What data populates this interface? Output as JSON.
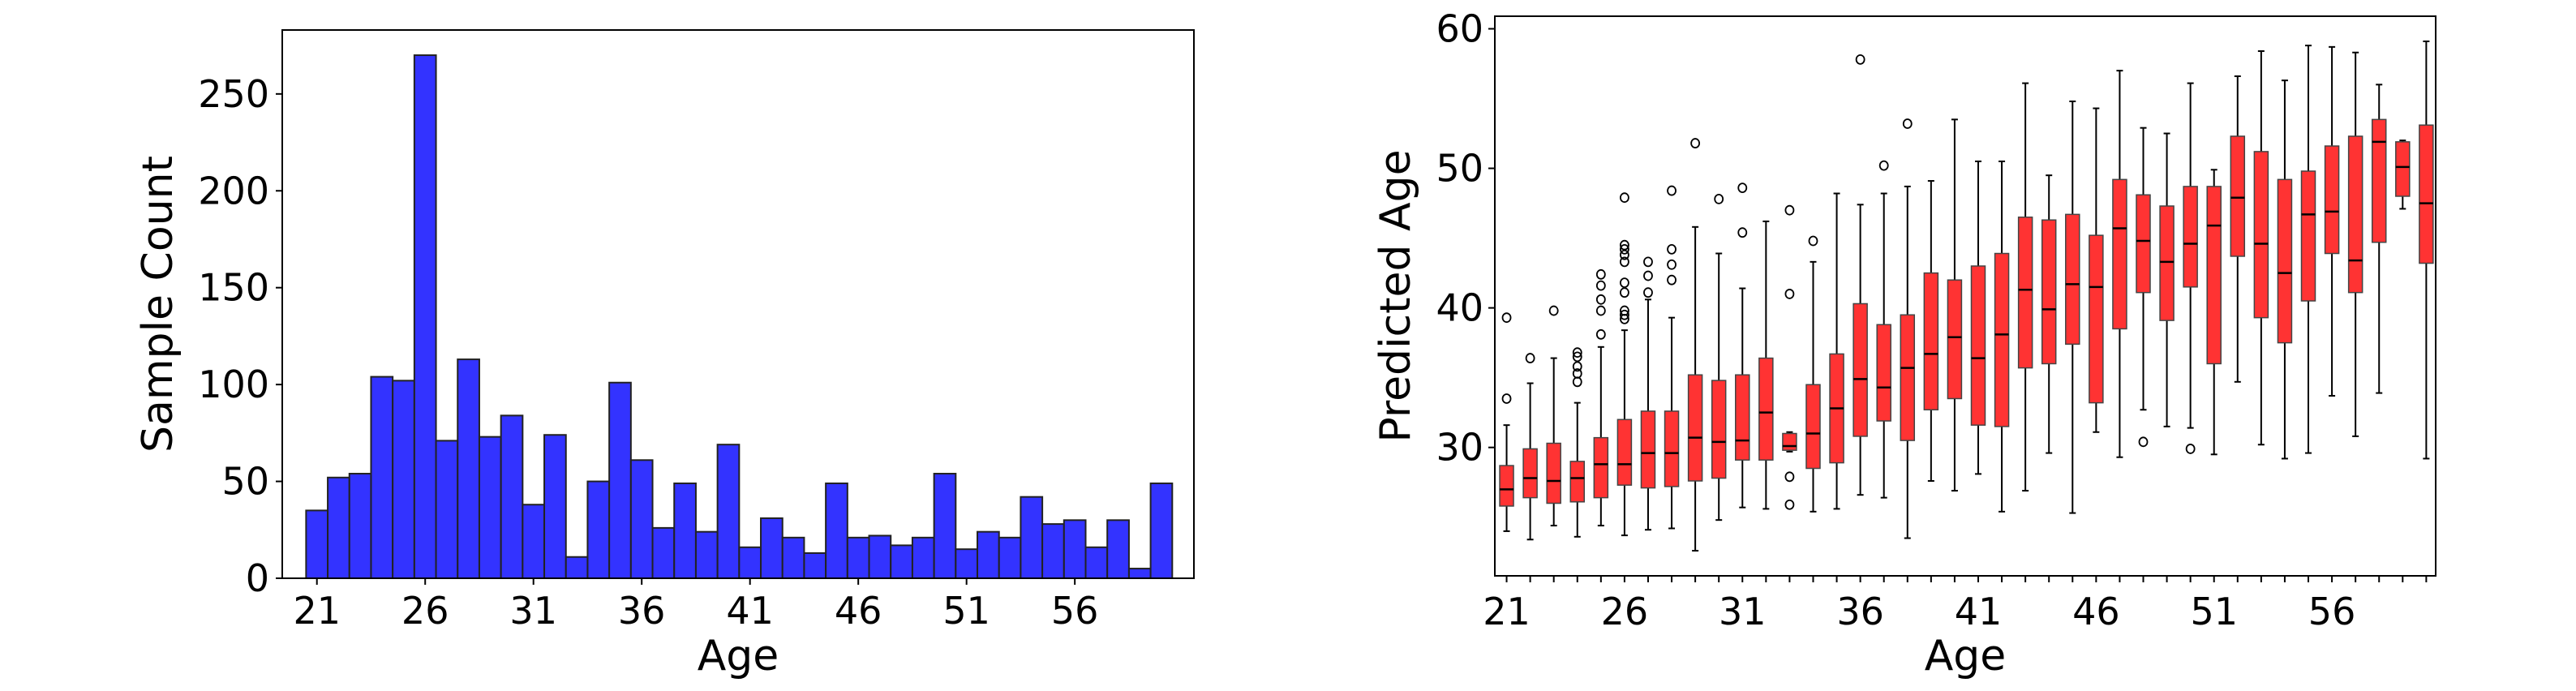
{
  "colors": {
    "hist_bar": "#3333ff",
    "box_fill": "#ff3333",
    "edge": "#000000"
  },
  "chart_data": [
    {
      "type": "bar",
      "title": "",
      "xlabel": "Age",
      "ylabel": "Sample Count",
      "x": [
        21,
        22,
        23,
        24,
        25,
        26,
        27,
        28,
        29,
        30,
        31,
        32,
        33,
        34,
        35,
        36,
        37,
        38,
        39,
        40,
        41,
        42,
        43,
        44,
        45,
        46,
        47,
        48,
        49,
        50,
        51,
        52,
        53,
        54,
        55,
        56,
        57,
        58,
        59,
        60
      ],
      "values": [
        35,
        52,
        54,
        104,
        102,
        270,
        71,
        113,
        73,
        84,
        38,
        74,
        11,
        50,
        101,
        61,
        26,
        49,
        24,
        69,
        16,
        31,
        21,
        13,
        49,
        21,
        22,
        17,
        21,
        54,
        15,
        24,
        21,
        42,
        28,
        30,
        16,
        30,
        5,
        49
      ],
      "xticks": [
        21,
        26,
        31,
        36,
        41,
        46,
        51,
        56
      ],
      "yticks": [
        0,
        50,
        100,
        150,
        200,
        250
      ],
      "xlim": [
        19.4,
        61.5
      ],
      "ylim": [
        0,
        283
      ],
      "grid": false
    },
    {
      "type": "box",
      "title": "",
      "xlabel": "Age",
      "ylabel": "Predicted Age",
      "xticks": [
        21,
        26,
        31,
        36,
        41,
        46,
        51,
        56
      ],
      "yticks": [
        30,
        40,
        50,
        60
      ],
      "xlim": [
        20.5,
        60.4
      ],
      "ylim": [
        20.8,
        60.9
      ],
      "grid": false,
      "boxes": [
        {
          "x": 21,
          "whislo": 24.0,
          "q1": 25.8,
          "med": 27.0,
          "q3": 28.7,
          "whishi": 31.6,
          "fliers": [
            33.5,
            39.3
          ]
        },
        {
          "x": 22,
          "whislo": 23.4,
          "q1": 26.4,
          "med": 27.8,
          "q3": 29.9,
          "whishi": 34.6,
          "fliers": [
            36.4
          ]
        },
        {
          "x": 23,
          "whislo": 24.4,
          "q1": 26.0,
          "med": 27.6,
          "q3": 30.3,
          "whishi": 36.4,
          "fliers": [
            39.8
          ]
        },
        {
          "x": 24,
          "whislo": 23.6,
          "q1": 26.1,
          "med": 27.8,
          "q3": 29.0,
          "whishi": 33.2,
          "fliers": [
            34.7,
            35.3,
            35.8,
            36.5,
            36.8
          ]
        },
        {
          "x": 25,
          "whislo": 24.4,
          "q1": 26.4,
          "med": 28.8,
          "q3": 30.7,
          "whishi": 37.2,
          "fliers": [
            38.1,
            39.8,
            40.6,
            41.6,
            42.4
          ]
        },
        {
          "x": 26,
          "whislo": 23.7,
          "q1": 27.3,
          "med": 28.8,
          "q3": 32.0,
          "whishi": 38.4,
          "fliers": [
            39.2,
            39.5,
            39.8,
            41.1,
            41.8,
            43.3,
            43.8,
            44.2,
            44.5,
            47.9
          ]
        },
        {
          "x": 27,
          "whislo": 24.1,
          "q1": 27.1,
          "med": 29.6,
          "q3": 32.6,
          "whishi": 40.6,
          "fliers": [
            41.1,
            42.3,
            43.3
          ]
        },
        {
          "x": 28,
          "whislo": 24.2,
          "q1": 27.2,
          "med": 29.6,
          "q3": 32.6,
          "whishi": 39.3,
          "fliers": [
            42.0,
            43.1,
            44.2,
            48.4
          ]
        },
        {
          "x": 29,
          "whislo": 22.6,
          "q1": 27.6,
          "med": 30.7,
          "q3": 35.2,
          "whishi": 45.8,
          "fliers": [
            51.8
          ]
        },
        {
          "x": 30,
          "whislo": 24.8,
          "q1": 27.8,
          "med": 30.4,
          "q3": 34.8,
          "whishi": 43.9,
          "fliers": [
            47.8
          ]
        },
        {
          "x": 31,
          "whislo": 25.7,
          "q1": 29.1,
          "med": 30.5,
          "q3": 35.2,
          "whishi": 41.4,
          "fliers": [
            45.4,
            48.6
          ]
        },
        {
          "x": 32,
          "whislo": 25.6,
          "q1": 29.1,
          "med": 32.5,
          "q3": 36.4,
          "whishi": 46.2,
          "fliers": []
        },
        {
          "x": 33,
          "whislo": 29.7,
          "q1": 29.8,
          "med": 30.1,
          "q3": 31.0,
          "whishi": 31.1,
          "fliers": [
            25.9,
            27.9,
            41.0,
            47.0
          ]
        },
        {
          "x": 34,
          "whislo": 25.4,
          "q1": 28.5,
          "med": 31.0,
          "q3": 34.5,
          "whishi": 43.3,
          "fliers": [
            44.8
          ]
        },
        {
          "x": 35,
          "whislo": 25.6,
          "q1": 28.9,
          "med": 32.8,
          "q3": 36.7,
          "whishi": 48.2,
          "fliers": []
        },
        {
          "x": 36,
          "whislo": 26.6,
          "q1": 30.8,
          "med": 34.9,
          "q3": 40.3,
          "whishi": 47.4,
          "fliers": [
            57.8
          ]
        },
        {
          "x": 37,
          "whislo": 26.4,
          "q1": 31.9,
          "med": 34.3,
          "q3": 38.8,
          "whishi": 48.2,
          "fliers": [
            50.2
          ]
        },
        {
          "x": 38,
          "whislo": 23.5,
          "q1": 30.5,
          "med": 35.7,
          "q3": 39.5,
          "whishi": 48.7,
          "fliers": [
            53.2
          ]
        },
        {
          "x": 39,
          "whislo": 27.6,
          "q1": 32.7,
          "med": 36.7,
          "q3": 42.5,
          "whishi": 49.1,
          "fliers": []
        },
        {
          "x": 40,
          "whislo": 26.9,
          "q1": 33.5,
          "med": 37.9,
          "q3": 42.0,
          "whishi": 53.5,
          "fliers": []
        },
        {
          "x": 41,
          "whislo": 28.1,
          "q1": 31.6,
          "med": 36.4,
          "q3": 43.0,
          "whishi": 50.5,
          "fliers": []
        },
        {
          "x": 42,
          "whislo": 25.4,
          "q1": 31.5,
          "med": 38.1,
          "q3": 43.9,
          "whishi": 50.5,
          "fliers": []
        },
        {
          "x": 43,
          "whislo": 26.9,
          "q1": 35.7,
          "med": 41.3,
          "q3": 46.5,
          "whishi": 56.1,
          "fliers": []
        },
        {
          "x": 44,
          "whislo": 29.6,
          "q1": 36.0,
          "med": 39.9,
          "q3": 46.3,
          "whishi": 49.5,
          "fliers": []
        },
        {
          "x": 45,
          "whislo": 25.3,
          "q1": 37.4,
          "med": 41.7,
          "q3": 46.7,
          "whishi": 54.8,
          "fliers": []
        },
        {
          "x": 46,
          "whislo": 31.1,
          "q1": 33.2,
          "med": 41.5,
          "q3": 45.2,
          "whishi": 54.3,
          "fliers": []
        },
        {
          "x": 47,
          "whislo": 29.3,
          "q1": 38.5,
          "med": 45.7,
          "q3": 49.2,
          "whishi": 57.0,
          "fliers": []
        },
        {
          "x": 48,
          "whislo": 32.7,
          "q1": 41.1,
          "med": 44.8,
          "q3": 48.1,
          "whishi": 52.9,
          "fliers": [
            30.4
          ]
        },
        {
          "x": 49,
          "whislo": 31.5,
          "q1": 39.1,
          "med": 43.3,
          "q3": 47.3,
          "whishi": 52.5,
          "fliers": []
        },
        {
          "x": 50,
          "whislo": 31.4,
          "q1": 41.5,
          "med": 44.6,
          "q3": 48.7,
          "whishi": 56.1,
          "fliers": [
            29.9
          ]
        },
        {
          "x": 51,
          "whislo": 29.5,
          "q1": 36.0,
          "med": 45.9,
          "q3": 48.7,
          "whishi": 49.9,
          "fliers": []
        },
        {
          "x": 52,
          "whislo": 34.7,
          "q1": 43.7,
          "med": 47.9,
          "q3": 52.3,
          "whishi": 56.6,
          "fliers": []
        },
        {
          "x": 53,
          "whislo": 30.2,
          "q1": 39.3,
          "med": 44.6,
          "q3": 51.2,
          "whishi": 58.4,
          "fliers": []
        },
        {
          "x": 54,
          "whislo": 29.2,
          "q1": 37.5,
          "med": 42.5,
          "q3": 49.2,
          "whishi": 56.3,
          "fliers": []
        },
        {
          "x": 55,
          "whislo": 29.6,
          "q1": 40.5,
          "med": 46.7,
          "q3": 49.8,
          "whishi": 58.8,
          "fliers": []
        },
        {
          "x": 56,
          "whislo": 33.7,
          "q1": 43.9,
          "med": 46.9,
          "q3": 51.6,
          "whishi": 58.7,
          "fliers": []
        },
        {
          "x": 57,
          "whislo": 30.8,
          "q1": 41.1,
          "med": 43.4,
          "q3": 52.3,
          "whishi": 58.3,
          "fliers": []
        },
        {
          "x": 58,
          "whislo": 33.9,
          "q1": 44.7,
          "med": 51.9,
          "q3": 53.5,
          "whishi": 56.0,
          "fliers": []
        },
        {
          "x": 59,
          "whislo": 47.1,
          "q1": 48.0,
          "med": 50.1,
          "q3": 51.9,
          "whishi": 52.0,
          "fliers": []
        },
        {
          "x": 60,
          "whislo": 29.2,
          "q1": 43.2,
          "med": 47.5,
          "q3": 53.1,
          "whishi": 59.1,
          "fliers": []
        }
      ]
    }
  ]
}
